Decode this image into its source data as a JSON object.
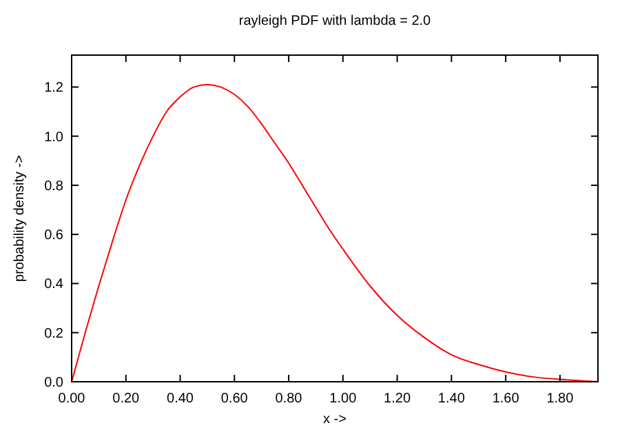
{
  "chart_data": {
    "type": "line",
    "title": "rayleigh PDF  with lambda = 2.0",
    "xlabel": "x ->",
    "ylabel": "probability density ->",
    "x": [
      0,
      0.05,
      0.1,
      0.15,
      0.2,
      0.25,
      0.3,
      0.35,
      0.4,
      0.45,
      0.5,
      0.55,
      0.6,
      0.65,
      0.7,
      0.75,
      0.8,
      0.85,
      0.9,
      0.95,
      1.0,
      1.1,
      1.2,
      1.3,
      1.4,
      1.5,
      1.6,
      1.7,
      1.8,
      1.94
    ],
    "series": [
      {
        "color": "#ff0000",
        "values": [
          0,
          0.2,
          0.39,
          0.57,
          0.74,
          0.88,
          1.0,
          1.1,
          1.16,
          1.2,
          1.21,
          1.2,
          1.17,
          1.12,
          1.05,
          0.97,
          0.89,
          0.8,
          0.71,
          0.62,
          0.54,
          0.39,
          0.27,
          0.18,
          0.11,
          0.07,
          0.04,
          0.02,
          0.01,
          0.0
        ]
      }
    ],
    "xlim": [
      0,
      1.94
    ],
    "xticks": [
      {
        "value": 0,
        "label": "0.00"
      },
      {
        "value": 0.2,
        "label": "0.20"
      },
      {
        "value": 0.4,
        "label": "0.40"
      },
      {
        "value": 0.6,
        "label": "0.60"
      },
      {
        "value": 0.8,
        "label": "0.80"
      },
      {
        "value": 1.0,
        "label": "1.00"
      },
      {
        "value": 1.2,
        "label": "1.20"
      },
      {
        "value": 1.4,
        "label": "1.40"
      },
      {
        "value": 1.6,
        "label": "1.60"
      },
      {
        "value": 1.8,
        "label": "1.80"
      }
    ],
    "ylim": [
      0,
      1.33
    ],
    "yticks": [
      {
        "value": 0,
        "label": "0.0"
      },
      {
        "value": 0.2,
        "label": "0.2"
      },
      {
        "value": 0.4,
        "label": "0.4"
      },
      {
        "value": 0.6,
        "label": "0.6"
      },
      {
        "value": 0.8,
        "label": "0.8"
      },
      {
        "value": 1.0,
        "label": "1.0"
      },
      {
        "value": 1.2,
        "label": "1.2"
      }
    ],
    "grid": false,
    "marker": "none",
    "line_style": "solid"
  }
}
